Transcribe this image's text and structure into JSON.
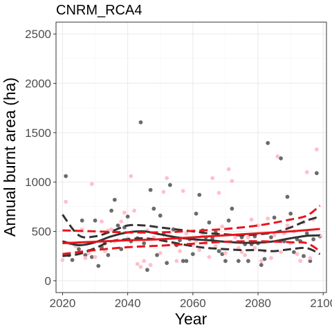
{
  "chart_data": {
    "type": "scatter",
    "title": "CNRM_RCA4",
    "xlabel": "Year",
    "ylabel": "Annual burnt area (ha)",
    "xlim": [
      2018,
      2101
    ],
    "ylim": [
      -120,
      2620
    ],
    "x_ticks": [
      2020,
      2040,
      2060,
      2080,
      2100
    ],
    "y_ticks": [
      0,
      500,
      1000,
      1500,
      2000,
      2500
    ],
    "grid": true,
    "legend": "none",
    "colors": {
      "dark_points": "#6b6b6b",
      "pink_points": "#ffc0cb",
      "dark_lines": "#333333",
      "red_lines": "#e8141c",
      "grid_major": "#ebebeb",
      "grid_minor": "#f5f5f5",
      "panel_border": "#333333"
    },
    "series": [
      {
        "kind": "points",
        "color_key": "dark_points",
        "points": [
          [
            2021,
            1060
          ],
          [
            2022,
            260
          ],
          [
            2023,
            210
          ],
          [
            2025,
            320
          ],
          [
            2026,
            610
          ],
          [
            2027,
            260
          ],
          [
            2028,
            300
          ],
          [
            2029,
            240
          ],
          [
            2030,
            610
          ],
          [
            2031,
            150
          ],
          [
            2032,
            340
          ],
          [
            2033,
            380
          ],
          [
            2034,
            260
          ],
          [
            2035,
            710
          ],
          [
            2036,
            820
          ],
          [
            2037,
            560
          ],
          [
            2038,
            320
          ],
          [
            2039,
            540
          ],
          [
            2040,
            650
          ],
          [
            2041,
            400
          ],
          [
            2043,
            430
          ],
          [
            2044,
            1605
          ],
          [
            2045,
            380
          ],
          [
            2046,
            110
          ],
          [
            2047,
            920
          ],
          [
            2048,
            730
          ],
          [
            2049,
            260
          ],
          [
            2050,
            660
          ],
          [
            2051,
            470
          ],
          [
            2052,
            180
          ],
          [
            2053,
            970
          ],
          [
            2054,
            520
          ],
          [
            2055,
            360
          ],
          [
            2056,
            410
          ],
          [
            2057,
            200
          ],
          [
            2058,
            200
          ],
          [
            2059,
            420
          ],
          [
            2060,
            270
          ],
          [
            2061,
            680
          ],
          [
            2062,
            870
          ],
          [
            2063,
            510
          ],
          [
            2064,
            440
          ],
          [
            2065,
            590
          ],
          [
            2066,
            430
          ],
          [
            2067,
            490
          ],
          [
            2068,
            300
          ],
          [
            2069,
            270
          ],
          [
            2070,
            200
          ],
          [
            2071,
            610
          ],
          [
            2072,
            730
          ],
          [
            2074,
            200
          ],
          [
            2075,
            440
          ],
          [
            2076,
            370
          ],
          [
            2077,
            200
          ],
          [
            2078,
            370
          ],
          [
            2079,
            450
          ],
          [
            2080,
            380
          ],
          [
            2081,
            160
          ],
          [
            2082,
            220
          ],
          [
            2083,
            1395
          ],
          [
            2084,
            440
          ],
          [
            2085,
            640
          ],
          [
            2087,
            1240
          ],
          [
            2088,
            400
          ],
          [
            2089,
            850
          ],
          [
            2090,
            680
          ],
          [
            2091,
            290
          ],
          [
            2092,
            420
          ],
          [
            2093,
            400
          ],
          [
            2094,
            250
          ],
          [
            2095,
            480
          ],
          [
            2096,
            200
          ],
          [
            2097,
            420
          ],
          [
            2098,
            1090
          ],
          [
            2099,
            450
          ]
        ]
      },
      {
        "kind": "points",
        "color_key": "pink_points",
        "points": [
          [
            2020,
            210
          ],
          [
            2021,
            800
          ],
          [
            2022,
            380
          ],
          [
            2024,
            350
          ],
          [
            2025,
            380
          ],
          [
            2026,
            520
          ],
          [
            2027,
            230
          ],
          [
            2028,
            280
          ],
          [
            2029,
            980
          ],
          [
            2030,
            240
          ],
          [
            2032,
            600
          ],
          [
            2033,
            300
          ],
          [
            2034,
            510
          ],
          [
            2035,
            520
          ],
          [
            2036,
            400
          ],
          [
            2037,
            410
          ],
          [
            2038,
            600
          ],
          [
            2039,
            690
          ],
          [
            2040,
            430
          ],
          [
            2041,
            1060
          ],
          [
            2042,
            710
          ],
          [
            2043,
            170
          ],
          [
            2044,
            140
          ],
          [
            2045,
            200
          ],
          [
            2046,
            510
          ],
          [
            2047,
            160
          ],
          [
            2048,
            440
          ],
          [
            2049,
            480
          ],
          [
            2050,
            280
          ],
          [
            2051,
            900
          ],
          [
            2052,
            1040
          ],
          [
            2053,
            490
          ],
          [
            2054,
            380
          ],
          [
            2055,
            200
          ],
          [
            2056,
            300
          ],
          [
            2057,
            910
          ],
          [
            2058,
            480
          ],
          [
            2059,
            430
          ],
          [
            2060,
            360
          ],
          [
            2061,
            400
          ],
          [
            2062,
            310
          ],
          [
            2063,
            460
          ],
          [
            2064,
            380
          ],
          [
            2065,
            240
          ],
          [
            2066,
            1040
          ],
          [
            2067,
            350
          ],
          [
            2068,
            890
          ],
          [
            2069,
            550
          ],
          [
            2070,
            280
          ],
          [
            2071,
            1130
          ],
          [
            2072,
            1010
          ],
          [
            2073,
            440
          ],
          [
            2074,
            330
          ],
          [
            2075,
            290
          ],
          [
            2076,
            260
          ],
          [
            2077,
            440
          ],
          [
            2078,
            620
          ],
          [
            2079,
            330
          ],
          [
            2080,
            560
          ],
          [
            2081,
            200
          ],
          [
            2082,
            300
          ],
          [
            2083,
            630
          ],
          [
            2084,
            230
          ],
          [
            2085,
            460
          ],
          [
            2086,
            1260
          ],
          [
            2087,
            290
          ],
          [
            2088,
            480
          ],
          [
            2089,
            560
          ],
          [
            2090,
            380
          ],
          [
            2091,
            500
          ],
          [
            2092,
            270
          ],
          [
            2093,
            200
          ],
          [
            2094,
            590
          ],
          [
            2095,
            1100
          ],
          [
            2096,
            230
          ],
          [
            2097,
            620
          ],
          [
            2098,
            1330
          ],
          [
            2099,
            460
          ]
        ]
      },
      {
        "kind": "line",
        "style": "solid",
        "color_key": "dark_lines",
        "x": [
          2020,
          2025,
          2030,
          2035,
          2040,
          2045,
          2050,
          2055,
          2060,
          2065,
          2070,
          2075,
          2080,
          2085,
          2090,
          2095,
          2099
        ],
        "y": [
          400,
          360,
          390,
          450,
          490,
          500,
          470,
          440,
          420,
          410,
          395,
          385,
          385,
          400,
          430,
          455,
          460
        ]
      },
      {
        "kind": "line",
        "style": "dashed",
        "color_key": "dark_lines",
        "x": [
          2020,
          2025,
          2030,
          2035,
          2040,
          2045,
          2050,
          2055,
          2060,
          2065,
          2070,
          2075,
          2080,
          2085,
          2090,
          2095,
          2099
        ],
        "y": [
          670,
          460,
          450,
          500,
          560,
          560,
          540,
          520,
          500,
          480,
          470,
          460,
          470,
          490,
          540,
          610,
          650
        ]
      },
      {
        "kind": "line",
        "style": "dashed",
        "color_key": "dark_lines",
        "x": [
          2020,
          2025,
          2030,
          2035,
          2040,
          2045,
          2050,
          2055,
          2060,
          2065,
          2070,
          2075,
          2080,
          2085,
          2090,
          2095,
          2099
        ],
        "y": [
          250,
          270,
          330,
          400,
          420,
          430,
          410,
          380,
          350,
          330,
          320,
          310,
          310,
          300,
          320,
          330,
          270
        ]
      },
      {
        "kind": "line",
        "style": "solid",
        "color_key": "red_lines",
        "x": [
          2020,
          2030,
          2040,
          2050,
          2060,
          2070,
          2080,
          2090,
          2099
        ],
        "y": [
          380,
          395,
          410,
          420,
          440,
          460,
          480,
          500,
          525
        ]
      },
      {
        "kind": "line",
        "style": "dashed",
        "color_key": "red_lines",
        "x": [
          2020,
          2030,
          2040,
          2050,
          2060,
          2070,
          2080,
          2090,
          2095,
          2099
        ],
        "y": [
          510,
          500,
          490,
          490,
          505,
          525,
          560,
          620,
          660,
          760
        ]
      },
      {
        "kind": "line",
        "style": "dashed",
        "color_key": "red_lines",
        "x": [
          2020,
          2030,
          2040,
          2050,
          2060,
          2070,
          2080,
          2090,
          2095,
          2099
        ],
        "y": [
          270,
          310,
          340,
          355,
          375,
          395,
          400,
          390,
          380,
          300
        ]
      }
    ]
  }
}
